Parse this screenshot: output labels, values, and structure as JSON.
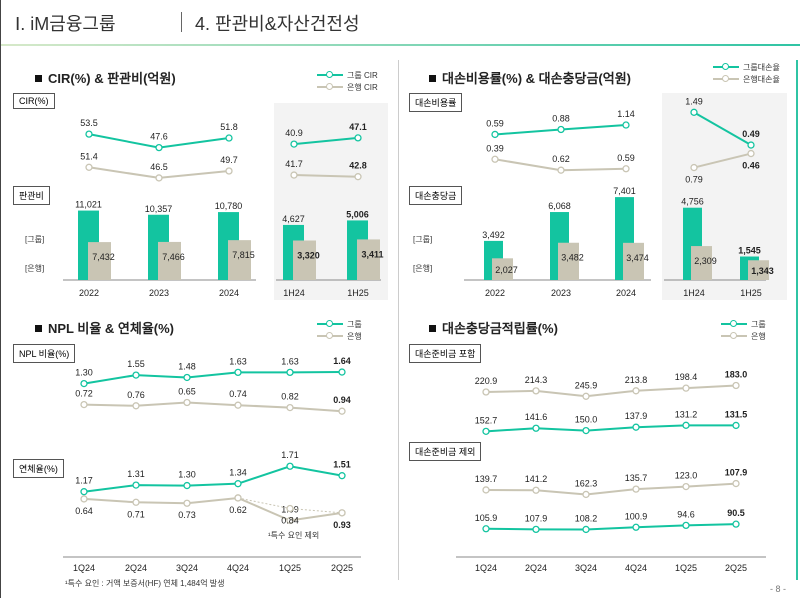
{
  "header": {
    "section": "Ⅰ. iM금융그룹",
    "title": "4. 판관비&자산건전성"
  },
  "page_number": "- 8 -",
  "colors": {
    "group": "#13c4a0",
    "bank": "#c9c5b4",
    "accent": "#2fc4a4"
  },
  "chart_data": [
    {
      "type": "line+bar",
      "title": "CIR(%) & 판관비(억원)",
      "legend": [
        "그룹 CIR",
        "은행 CIR"
      ],
      "line_box": "CIR(%)",
      "bar_box": "판관비",
      "bar_tags": [
        "[그룹]",
        "[은행]"
      ],
      "categories": [
        "2022",
        "2023",
        "2024",
        "1H24",
        "1H25"
      ],
      "lines": [
        {
          "name": "그룹 CIR",
          "values": [
            53.5,
            47.6,
            51.8,
            40.9,
            47.1
          ]
        },
        {
          "name": "은행 CIR",
          "values": [
            51.4,
            46.5,
            49.7,
            41.7,
            42.8
          ]
        }
      ],
      "bars": [
        {
          "name": "그룹",
          "values": [
            11021,
            10357,
            10780,
            4627,
            5006
          ]
        },
        {
          "name": "은행",
          "values": [
            7432,
            7466,
            7815,
            3320,
            3411
          ]
        }
      ]
    },
    {
      "type": "line+bar",
      "title": "대손비용률(%) & 대손충당금(억원)",
      "legend": [
        "그룹대손율",
        "은행대손율"
      ],
      "line_box": "대손비용률",
      "bar_box": "대손충당금",
      "bar_tags": [
        "[그룹]",
        "[은행]"
      ],
      "categories": [
        "2022",
        "2023",
        "2024",
        "1H24",
        "1H25"
      ],
      "lines": [
        {
          "name": "그룹대손율",
          "values": [
            0.59,
            0.88,
            1.14,
            1.49,
            0.49
          ]
        },
        {
          "name": "은행대손율",
          "values": [
            0.39,
            0.62,
            0.59,
            0.79,
            0.46
          ]
        }
      ],
      "bars": [
        {
          "name": "그룹",
          "values": [
            3492,
            6068,
            7401,
            4756,
            1545
          ]
        },
        {
          "name": "은행",
          "values": [
            2027,
            3482,
            3474,
            2309,
            1343
          ]
        }
      ]
    },
    {
      "type": "line",
      "title": "NPL 비율 & 연체율(%)",
      "legend": [
        "그룹",
        "은행"
      ],
      "categories": [
        "1Q24",
        "2Q24",
        "3Q24",
        "4Q24",
        "1Q25",
        "2Q25"
      ],
      "panels": [
        {
          "box": "NPL 비율(%)",
          "series": [
            {
              "name": "그룹",
              "values": [
                1.3,
                1.55,
                1.48,
                1.63,
                1.63,
                1.64
              ]
            },
            {
              "name": "은행",
              "values": [
                0.72,
                0.76,
                0.65,
                0.74,
                0.82,
                0.94
              ]
            }
          ]
        },
        {
          "box": "연체율(%)",
          "series": [
            {
              "name": "그룹",
              "values": [
                1.17,
                1.31,
                1.3,
                1.34,
                1.71,
                1.51
              ]
            },
            {
              "name": "은행",
              "values": [
                0.64,
                0.71,
                0.73,
                0.62,
                1.09,
                0.93
              ]
            }
          ],
          "adjusted": {
            "label": "¹특수 요인 제외",
            "values": [
              0.62,
              0.84,
              0.93
            ]
          }
        }
      ],
      "footnote": "¹특수 요인 : 거액 보증서(HF) 연체 1,484억 발생"
    },
    {
      "type": "line",
      "title": "대손충당금적립률(%)",
      "legend": [
        "그룹",
        "은행"
      ],
      "categories": [
        "1Q24",
        "2Q24",
        "3Q24",
        "4Q24",
        "1Q25",
        "2Q25"
      ],
      "panels": [
        {
          "box": "대손준비금 포함",
          "series": [
            {
              "name": "그룹",
              "values": [
                152.7,
                141.6,
                150.0,
                137.9,
                131.2,
                131.5
              ]
            },
            {
              "name": "은행",
              "values": [
                220.9,
                214.3,
                245.9,
                213.8,
                198.4,
                183.0
              ]
            }
          ]
        },
        {
          "box": "대손준비금 제외",
          "series": [
            {
              "name": "그룹",
              "values": [
                105.9,
                107.9,
                108.2,
                100.9,
                94.6,
                90.5
              ]
            },
            {
              "name": "은행",
              "values": [
                139.7,
                141.2,
                162.3,
                135.7,
                123.0,
                107.9
              ]
            }
          ]
        }
      ]
    }
  ]
}
